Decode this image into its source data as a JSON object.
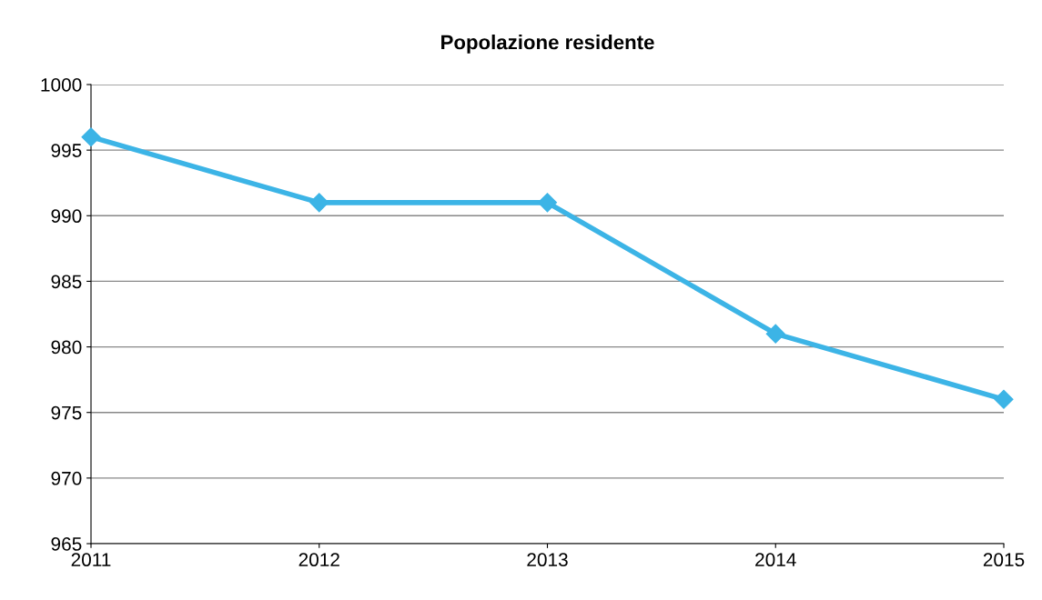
{
  "chart_data": {
    "type": "line",
    "title": "Popolazione residente",
    "x": [
      2011,
      2012,
      2013,
      2014,
      2015
    ],
    "series": [
      {
        "color": "#3cb4e6",
        "values": [
          996,
          991,
          991,
          981,
          976
        ]
      }
    ],
    "xlim": [
      2011,
      2015
    ],
    "xticks": [
      2011,
      2012,
      2013,
      2014,
      2015
    ],
    "ylim": [
      965,
      1000
    ],
    "yticks": [
      965,
      970,
      975,
      980,
      985,
      990,
      995,
      1000
    ],
    "grid": "y",
    "marker": "diamond",
    "line_style": "solid",
    "legend": false
  }
}
